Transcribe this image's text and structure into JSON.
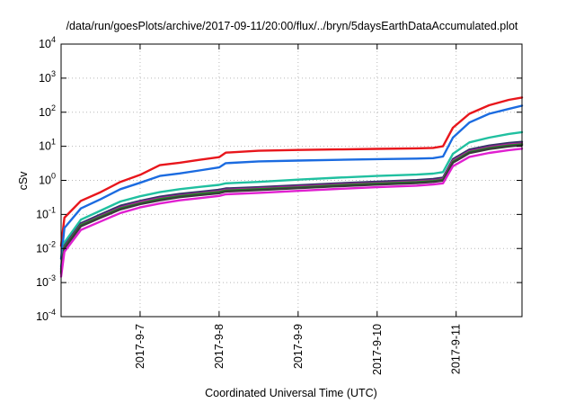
{
  "chart_data": {
    "type": "line",
    "title": "/data/run/goesPlots/archive/2017-09-11/20:00/flux/../bryn/5daysEarthDataAccumulated.plot",
    "xlabel": "Coordinated Universal Time (UTC)",
    "ylabel": "cSv",
    "yscale": "log",
    "ylim": [
      0.0001,
      10000
    ],
    "xlim": [
      "2017-09-06 00:00",
      "2017-09-11 20:00"
    ],
    "grid": true,
    "legend": "none",
    "y_ticks": [
      {
        "base": "10",
        "exp": "-4"
      },
      {
        "base": "10",
        "exp": "-3"
      },
      {
        "base": "10",
        "exp": "-2"
      },
      {
        "base": "10",
        "exp": "-1"
      },
      {
        "base": "10",
        "exp": "0"
      },
      {
        "base": "10",
        "exp": "1"
      },
      {
        "base": "10",
        "exp": "2"
      },
      {
        "base": "10",
        "exp": "3"
      },
      {
        "base": "10",
        "exp": "4"
      }
    ],
    "x_ticks": [
      "2017-9-7",
      "2017-9-8",
      "2017-9-9",
      "2017-9-10",
      "2017-9-11"
    ],
    "x": [
      "2017-09-06 00:00",
      "2017-09-06 01:00",
      "2017-09-06 06:00",
      "2017-09-06 12:00",
      "2017-09-06 18:00",
      "2017-09-07 00:00",
      "2017-09-07 06:00",
      "2017-09-07 12:00",
      "2017-09-07 18:00",
      "2017-09-08 00:00",
      "2017-09-08 02:00",
      "2017-09-08 12:00",
      "2017-09-09 00:00",
      "2017-09-09 12:00",
      "2017-09-10 00:00",
      "2017-09-10 12:00",
      "2017-09-10 17:00",
      "2017-09-10 20:00",
      "2017-09-10 23:00",
      "2017-09-11 04:00",
      "2017-09-11 10:00",
      "2017-09-11 16:00",
      "2017-09-11 20:00"
    ],
    "series": [
      {
        "color": "#e8161c",
        "values": [
          0.012,
          0.08,
          0.25,
          0.45,
          0.9,
          1.45,
          2.8,
          3.3,
          4.0,
          4.8,
          6.5,
          7.4,
          7.8,
          8.1,
          8.4,
          8.7,
          9.0,
          10.0,
          35,
          90,
          160,
          230,
          270
        ]
      },
      {
        "color": "#1b6be0",
        "values": [
          0.005,
          0.04,
          0.15,
          0.28,
          0.55,
          0.85,
          1.35,
          1.6,
          1.95,
          2.4,
          3.2,
          3.6,
          3.8,
          4.0,
          4.2,
          4.35,
          4.5,
          5.0,
          18,
          50,
          90,
          125,
          155
        ]
      },
      {
        "color": "#20c0a0",
        "values": [
          0.003,
          0.015,
          0.07,
          0.13,
          0.24,
          0.34,
          0.45,
          0.55,
          0.64,
          0.74,
          0.82,
          0.9,
          1.05,
          1.2,
          1.35,
          1.48,
          1.58,
          1.75,
          6.0,
          13,
          18,
          23,
          26
        ]
      },
      {
        "color": "#333366",
        "values": [
          0.0025,
          0.012,
          0.055,
          0.1,
          0.18,
          0.25,
          0.33,
          0.4,
          0.46,
          0.53,
          0.58,
          0.63,
          0.72,
          0.82,
          0.92,
          1.02,
          1.1,
          1.2,
          4.2,
          8.0,
          10.5,
          12.5,
          13.5
        ]
      },
      {
        "color": "#b0209a",
        "values": [
          0.0022,
          0.011,
          0.05,
          0.09,
          0.16,
          0.23,
          0.3,
          0.36,
          0.42,
          0.48,
          0.53,
          0.58,
          0.66,
          0.75,
          0.84,
          0.93,
          1.0,
          1.1,
          3.8,
          7.2,
          9.5,
          11.3,
          12.2
        ]
      },
      {
        "color": "#1a9020",
        "values": [
          0.002,
          0.0105,
          0.048,
          0.085,
          0.15,
          0.21,
          0.28,
          0.34,
          0.4,
          0.45,
          0.5,
          0.55,
          0.62,
          0.71,
          0.8,
          0.88,
          0.95,
          1.04,
          3.5,
          6.7,
          8.8,
          10.5,
          11.4
        ]
      },
      {
        "color": "#3a3a3a",
        "values": [
          0.0018,
          0.01,
          0.045,
          0.08,
          0.14,
          0.2,
          0.26,
          0.32,
          0.37,
          0.42,
          0.47,
          0.52,
          0.59,
          0.67,
          0.75,
          0.83,
          0.9,
          0.98,
          3.3,
          6.3,
          8.3,
          9.9,
          10.8
        ]
      },
      {
        "color": "#e020d0",
        "values": [
          0.0015,
          0.008,
          0.035,
          0.062,
          0.11,
          0.16,
          0.21,
          0.26,
          0.3,
          0.35,
          0.39,
          0.43,
          0.49,
          0.56,
          0.63,
          0.7,
          0.76,
          0.82,
          2.6,
          4.9,
          6.4,
          7.7,
          8.5
        ]
      }
    ]
  }
}
